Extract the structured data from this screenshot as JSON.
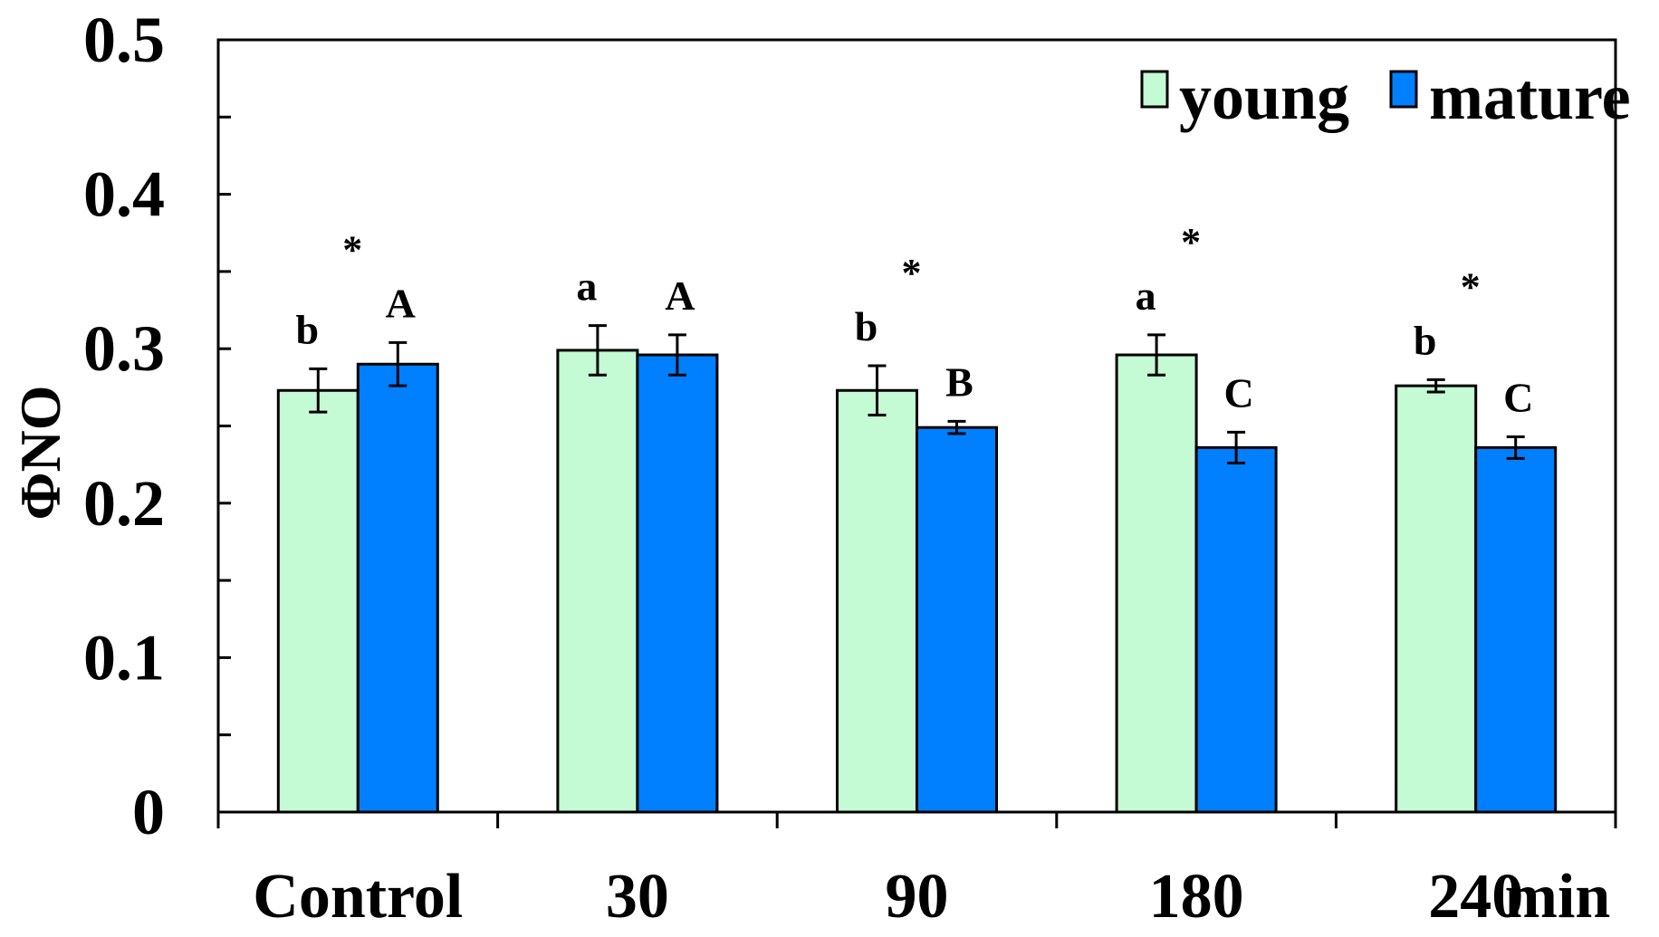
{
  "chart_data": {
    "type": "bar",
    "title": "",
    "xlabel": "",
    "x_unit": "min",
    "ylabel": "ΦNO",
    "ylim": [
      0,
      0.5
    ],
    "yticks": [
      0,
      0.1,
      0.2,
      0.3,
      0.4,
      0.5
    ],
    "ytick_labels": [
      "0",
      "0.1",
      "0.2",
      "0.3",
      "0.4",
      "0.5"
    ],
    "categories": [
      "Control",
      "30",
      "90",
      "180",
      "240"
    ],
    "legend_position": "top-right",
    "series": [
      {
        "name": "young",
        "color": "#c4fad4",
        "values": [
          0.273,
          0.299,
          0.273,
          0.296,
          0.276
        ],
        "errors": [
          0.014,
          0.016,
          0.016,
          0.013,
          0.004
        ],
        "letters": [
          "b",
          "a",
          "b",
          "a",
          "b"
        ]
      },
      {
        "name": "mature",
        "color": "#0080ff",
        "values": [
          0.29,
          0.296,
          0.249,
          0.236,
          0.236
        ],
        "errors": [
          0.014,
          0.013,
          0.004,
          0.01,
          0.007
        ],
        "letters": [
          "A",
          "A",
          "B",
          "C",
          "C"
        ]
      }
    ],
    "significance_marks": [
      "*",
      "",
      "*",
      "*",
      "*"
    ]
  }
}
